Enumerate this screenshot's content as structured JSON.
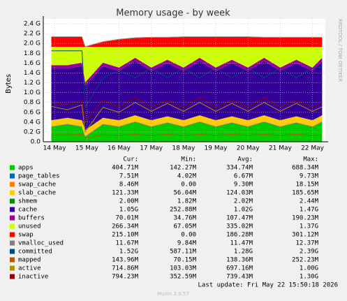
{
  "chart_data": {
    "type": "area",
    "title": "Memory usage - by week",
    "y_label": "Bytes",
    "side_text": "RRDTOOL / TOBI OETIKER",
    "x": [
      13.9,
      14.4,
      14.85,
      14.95,
      15.5,
      16,
      16.5,
      17,
      17.5,
      18,
      18.5,
      19,
      19.5,
      20,
      20.5,
      21,
      21.5,
      22,
      22.3
    ],
    "xlim": [
      13.65,
      22.4
    ],
    "xticks": [
      {
        "value": 14,
        "label": "14 May"
      },
      {
        "value": 15,
        "label": "15 May"
      },
      {
        "value": 16,
        "label": "16 May"
      },
      {
        "value": 17,
        "label": "17 May"
      },
      {
        "value": 18,
        "label": "18 May"
      },
      {
        "value": 19,
        "label": "19 May"
      },
      {
        "value": 20,
        "label": "20 May"
      },
      {
        "value": 21,
        "label": "21 May"
      },
      {
        "value": 22,
        "label": "22 May"
      }
    ],
    "ylim": [
      0,
      2.5
    ],
    "yticks": [
      {
        "value": 0,
        "label": "0.0"
      },
      {
        "value": 0.2,
        "label": "0.2 G"
      },
      {
        "value": 0.4,
        "label": "0.4 G"
      },
      {
        "value": 0.6,
        "label": "0.6 G"
      },
      {
        "value": 0.8,
        "label": "0.8 G"
      },
      {
        "value": 1.0,
        "label": "1.0 G"
      },
      {
        "value": 1.2,
        "label": "1.2 G"
      },
      {
        "value": 1.4,
        "label": "1.4 G"
      },
      {
        "value": 1.6,
        "label": "1.6 G"
      },
      {
        "value": 1.8,
        "label": "1.8 G"
      },
      {
        "value": 2.0,
        "label": "2.0 G"
      },
      {
        "value": 2.2,
        "label": "2.2 G"
      },
      {
        "value": 2.4,
        "label": "2.4 G"
      }
    ],
    "grid": true,
    "legend_columns": [
      "Cur:",
      "Min:",
      "Avg:",
      "Max:"
    ],
    "series": [
      {
        "name": "apps",
        "color": "#00cc00",
        "style": "area",
        "stats": [
          "404.71M",
          "142.27M",
          "334.74M",
          "688.34M"
        ],
        "values": [
          0.3,
          0.35,
          0.3,
          0.1,
          0.35,
          0.3,
          0.4,
          0.3,
          0.38,
          0.3,
          0.4,
          0.3,
          0.38,
          0.3,
          0.4,
          0.3,
          0.38,
          0.3,
          0.4
        ]
      },
      {
        "name": "page_tables",
        "color": "#0066b3",
        "style": "area",
        "stats": [
          "7.51M",
          "4.02M",
          "6.67M",
          "9.73M"
        ],
        "values": [
          0.007,
          0.007,
          0.007,
          0.007,
          0.007,
          0.007,
          0.007,
          0.007,
          0.007,
          0.007,
          0.007,
          0.007,
          0.007,
          0.007,
          0.007,
          0.007,
          0.007,
          0.007,
          0.007
        ]
      },
      {
        "name": "swap_cache",
        "color": "#ff8000",
        "style": "area",
        "stats": [
          "8.46M",
          "0.00",
          "9.30M",
          "18.15M"
        ],
        "values": [
          0.01,
          0.01,
          0.01,
          0.01,
          0.01,
          0.01,
          0.01,
          0.01,
          0.01,
          0.01,
          0.01,
          0.01,
          0.01,
          0.01,
          0.01,
          0.01,
          0.01,
          0.01,
          0.01
        ]
      },
      {
        "name": "slab_cache",
        "color": "#ffcc00",
        "style": "area",
        "stats": [
          "121.33M",
          "56.04M",
          "124.03M",
          "185.65M"
        ],
        "values": [
          0.12,
          0.12,
          0.12,
          0.12,
          0.12,
          0.12,
          0.12,
          0.12,
          0.12,
          0.12,
          0.12,
          0.12,
          0.12,
          0.12,
          0.12,
          0.12,
          0.12,
          0.12,
          0.12
        ]
      },
      {
        "name": "shmem",
        "color": "#008f00",
        "style": "area",
        "stats": [
          "2.00M",
          "1.82M",
          "2.02M",
          "2.44M"
        ],
        "values": [
          0.002,
          0.002,
          0.002,
          0.002,
          0.002,
          0.002,
          0.002,
          0.002,
          0.002,
          0.002,
          0.002,
          0.002,
          0.002,
          0.002,
          0.002,
          0.002,
          0.002,
          0.002,
          0.002
        ]
      },
      {
        "name": "cache",
        "color": "#330099",
        "style": "area",
        "stats": [
          "1.05G",
          "252.88M",
          "1.02G",
          "1.47G"
        ],
        "values": [
          1.05,
          1.0,
          1.1,
          0.9,
          1.05,
          1.0,
          1.1,
          1.0,
          1.08,
          1.0,
          1.1,
          1.0,
          1.08,
          1.0,
          1.1,
          1.0,
          1.08,
          1.0,
          1.1
        ]
      },
      {
        "name": "buffers",
        "color": "#990099",
        "style": "area",
        "stats": [
          "70.01M",
          "34.76M",
          "107.47M",
          "190.23M"
        ],
        "values": [
          0.07,
          0.07,
          0.07,
          0.07,
          0.07,
          0.07,
          0.07,
          0.07,
          0.07,
          0.07,
          0.07,
          0.07,
          0.07,
          0.07,
          0.07,
          0.07,
          0.07,
          0.07,
          0.07
        ]
      },
      {
        "name": "unused",
        "color": "#ccff00",
        "style": "area",
        "stats": [
          "266.34M",
          "67.05M",
          "335.02M",
          "1.37G"
        ],
        "values": [
          0.371,
          0.371,
          0.321,
          0.721,
          0.321,
          0.421,
          0.221,
          0.421,
          0.261,
          0.421,
          0.221,
          0.421,
          0.261,
          0.421,
          0.221,
          0.421,
          0.261,
          0.421,
          0.221
        ]
      },
      {
        "name": "swap",
        "color": "#ff0000",
        "style": "area",
        "stats": [
          "215.10M",
          "0.00",
          "186.28M",
          "301.12M"
        ],
        "values": [
          0.2,
          0.2,
          0.2,
          0.0,
          0.1,
          0.15,
          0.18,
          0.19,
          0.19,
          0.2,
          0.2,
          0.2,
          0.2,
          0.2,
          0.19,
          0.19,
          0.19,
          0.19,
          0.19
        ]
      },
      {
        "name": "vmalloc_used",
        "color": "#808080",
        "style": "area",
        "stats": [
          "11.67M",
          "9.84M",
          "11.47M",
          "12.37M"
        ],
        "values": [
          0.012,
          0.012,
          0.012,
          0.012,
          0.012,
          0.012,
          0.012,
          0.012,
          0.012,
          0.012,
          0.012,
          0.012,
          0.012,
          0.012,
          0.012,
          0.012,
          0.012,
          0.012,
          0.012
        ]
      },
      {
        "name": "committed",
        "color": "#00487d",
        "style": "line",
        "stats": [
          "1.52G",
          "587.11M",
          "1.28G",
          "2.39G"
        ],
        "values": [
          1.85,
          1.85,
          1.85,
          0.7,
          1.3,
          1.45,
          1.3,
          1.5,
          1.3,
          1.5,
          1.3,
          1.5,
          1.3,
          1.5,
          1.3,
          1.5,
          1.3,
          1.5,
          1.52
        ]
      },
      {
        "name": "mapped",
        "color": "#b35a00",
        "style": "line",
        "stats": [
          "143.96M",
          "70.15M",
          "138.36M",
          "252.23M"
        ],
        "values": [
          0.14,
          0.14,
          0.15,
          0.08,
          0.14,
          0.13,
          0.15,
          0.13,
          0.15,
          0.13,
          0.15,
          0.13,
          0.15,
          0.13,
          0.15,
          0.13,
          0.15,
          0.13,
          0.14
        ]
      },
      {
        "name": "active",
        "color": "#b38f00",
        "style": "line",
        "stats": [
          "714.86M",
          "103.03M",
          "697.16M",
          "1.00G"
        ],
        "values": [
          0.72,
          0.65,
          0.75,
          0.2,
          0.7,
          0.6,
          0.8,
          0.62,
          0.78,
          0.62,
          0.8,
          0.62,
          0.78,
          0.62,
          0.8,
          0.62,
          0.78,
          0.62,
          0.71
        ]
      },
      {
        "name": "inactive",
        "color": "#990000",
        "style": "line",
        "stats": [
          "794.23M",
          "352.59M",
          "739.43M",
          "1.30G"
        ],
        "values": [
          0.8,
          0.75,
          0.85,
          0.4,
          0.85,
          0.7,
          0.9,
          0.7,
          0.85,
          0.7,
          0.9,
          0.7,
          0.85,
          0.7,
          0.9,
          0.7,
          0.85,
          0.7,
          0.79
        ]
      }
    ],
    "footer": "Last update: Fri May 22 15:50:18 2026",
    "version": "Munin 2.0.57"
  }
}
